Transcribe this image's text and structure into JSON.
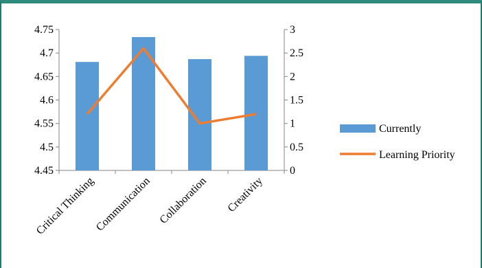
{
  "chart_data": {
    "type": "bar",
    "categories": [
      "Critical Thinking",
      "Communication",
      "Collaboration",
      "Creativity"
    ],
    "series": [
      {
        "name": "Currently",
        "type": "bar",
        "axis": "left",
        "color": "#5b9bd5",
        "values": [
          4.681,
          4.734,
          4.687,
          4.694
        ]
      },
      {
        "name": "Learning Priority",
        "type": "line",
        "axis": "right",
        "color": "#ed7d31",
        "values": [
          1.2,
          2.6,
          1.0,
          1.2
        ]
      }
    ],
    "y_left": {
      "ylim": [
        4.45,
        4.75
      ],
      "ticks": [
        "4.45",
        "4.5",
        "4.55",
        "4.6",
        "4.65",
        "4.7",
        "4.75"
      ]
    },
    "y_right": {
      "ylim": [
        0,
        3
      ],
      "ticks": [
        "0",
        "0.5",
        "1",
        "1.5",
        "2",
        "2.5",
        "3"
      ]
    },
    "grid": false,
    "legend_position": "right"
  }
}
